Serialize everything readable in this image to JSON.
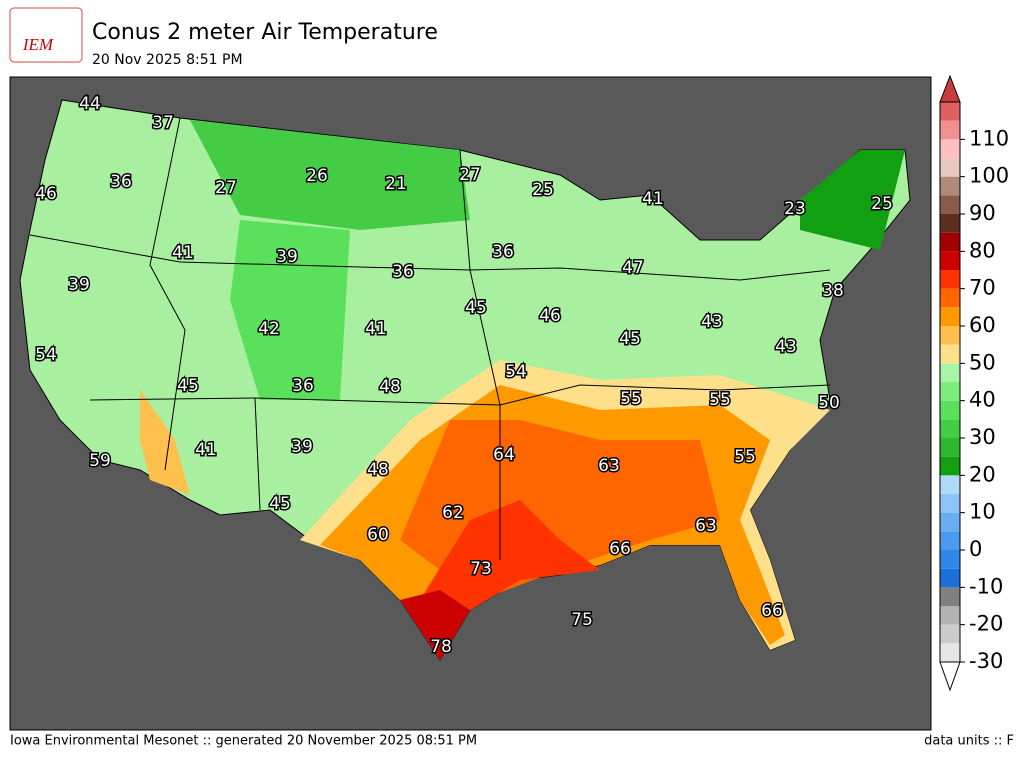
{
  "header": {
    "logo": "IEM",
    "title": "Conus 2 meter Air Temperature",
    "subtitle": "20 Nov 2025 8:51 PM"
  },
  "footer": {
    "left": "Iowa Environmental Mesonet :: generated 20 November 2025 08:51 PM",
    "right": "data units :: F"
  },
  "colorbar": {
    "lim": [
      -30,
      120
    ],
    "ticks": [
      -30,
      -20,
      -10,
      0,
      10,
      20,
      30,
      40,
      50,
      60,
      70,
      80,
      90,
      100,
      110
    ],
    "levels": [
      -30,
      -25,
      -20,
      -15,
      -10,
      -5,
      0,
      5,
      10,
      15,
      20,
      25,
      30,
      35,
      40,
      45,
      50,
      55,
      60,
      65,
      70,
      75,
      80,
      85,
      90,
      95,
      100,
      105,
      110,
      115,
      120
    ],
    "colors": [
      "#e6e6e6",
      "#cccccc",
      "#b3b3b3",
      "#808080",
      "#1c6fd8",
      "#2e86e8",
      "#4a9af0",
      "#6aaef2",
      "#8cc4f5",
      "#b0dbf8",
      "#11a011",
      "#2eb82e",
      "#45cc45",
      "#5be05b",
      "#7ced7c",
      "#a8f5a8",
      "#ffe08a",
      "#ffc04d",
      "#ff9900",
      "#ff6600",
      "#ff3300",
      "#cc0000",
      "#a00000",
      "#5c2e20",
      "#8a5a4a",
      "#b08a7a",
      "#e8c8c0",
      "#ffc0c0",
      "#f09090",
      "#e06060"
    ],
    "under_color": "#ffffff",
    "over_color": "#c83c3c"
  },
  "stations": [
    44,
    37,
    46,
    36,
    27,
    26,
    21,
    27,
    25,
    41,
    23,
    25,
    41,
    39,
    36,
    36,
    47,
    39,
    42,
    41,
    45,
    46,
    45,
    43,
    38,
    43,
    54,
    45,
    36,
    48,
    54,
    55,
    55,
    50,
    41,
    39,
    59,
    48,
    64,
    63,
    55,
    45,
    60,
    62,
    63,
    66,
    73,
    75,
    66,
    78
  ]
}
